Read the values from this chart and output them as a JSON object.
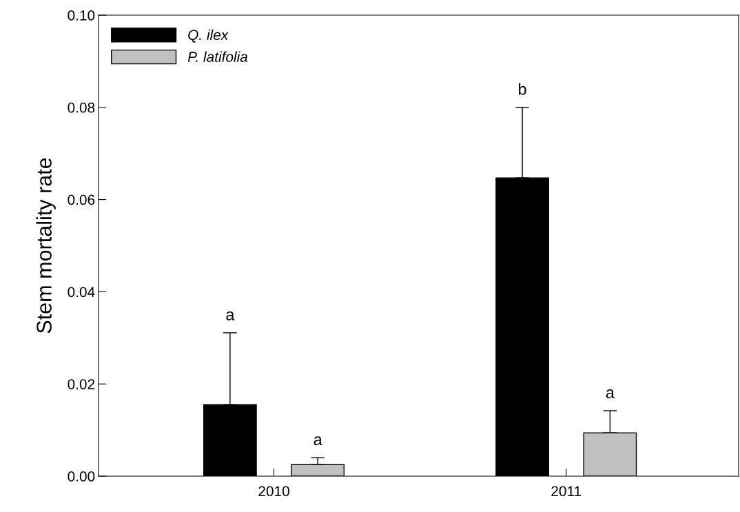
{
  "chart_data": {
    "type": "bar",
    "ylabel": "Stem mortality rate",
    "categories": [
      "2010",
      "2011"
    ],
    "series": [
      {
        "name": "Q. ilex",
        "color": "#000000",
        "values": [
          0.0155,
          0.0647
        ],
        "errors": [
          [
            0.0155,
            0.0311
          ],
          [
            0.0647,
            0.08
          ]
        ]
      },
      {
        "name": "P. latifolia",
        "color": "#c0c0c0",
        "values": [
          0.0025,
          0.0094
        ],
        "errors": [
          [
            0.0025,
            0.004
          ],
          [
            0.0094,
            0.0142
          ]
        ]
      }
    ],
    "annotations": [
      "a",
      "b",
      "a",
      "a"
    ],
    "ylim": [
      0,
      0.1
    ],
    "yticks": [
      {
        "value": 0,
        "label": "0.00"
      },
      {
        "value": 0.02,
        "label": "0.02"
      },
      {
        "value": 0.04,
        "label": "0.04"
      },
      {
        "value": 0.06,
        "label": "0.06"
      },
      {
        "value": 0.08,
        "label": "0.08"
      },
      {
        "value": 0.1,
        "label": "0.10"
      }
    ],
    "legend": "top left",
    "grid": false
  }
}
